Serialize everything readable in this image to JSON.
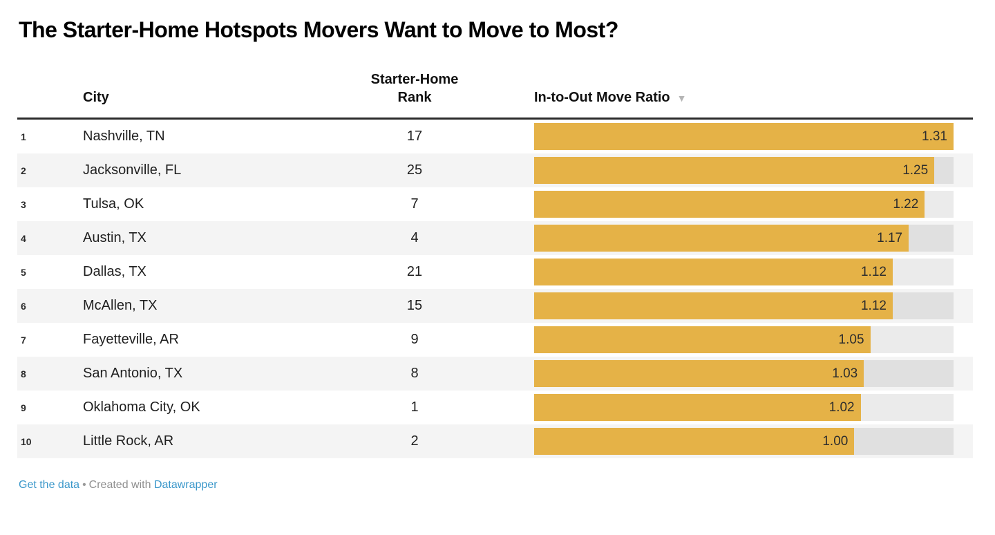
{
  "title": "The Starter-Home Hotspots Movers Want to Move to Most?",
  "table": {
    "columns": {
      "city": "City",
      "starter_rank_line1": "Starter-Home",
      "starter_rank_line2": "Rank",
      "ratio": "In-to-Out Move Ratio",
      "sort_icon": "▼",
      "sorted_by": "In-to-Out Move Ratio",
      "sort_direction": "descending"
    },
    "rows": [
      {
        "index": "1",
        "city": "Nashville, TN",
        "starter_rank": "17",
        "ratio": "1.31",
        "ratio_value": 1.31
      },
      {
        "index": "2",
        "city": "Jacksonville, FL",
        "starter_rank": "25",
        "ratio": "1.25",
        "ratio_value": 1.25
      },
      {
        "index": "3",
        "city": "Tulsa, OK",
        "starter_rank": "7",
        "ratio": "1.22",
        "ratio_value": 1.22
      },
      {
        "index": "4",
        "city": "Austin, TX",
        "starter_rank": "4",
        "ratio": "1.17",
        "ratio_value": 1.17
      },
      {
        "index": "5",
        "city": "Dallas, TX",
        "starter_rank": "21",
        "ratio": "1.12",
        "ratio_value": 1.12
      },
      {
        "index": "6",
        "city": "McAllen, TX",
        "starter_rank": "15",
        "ratio": "1.12",
        "ratio_value": 1.12
      },
      {
        "index": "7",
        "city": "Fayetteville, AR",
        "starter_rank": "9",
        "ratio": "1.05",
        "ratio_value": 1.05
      },
      {
        "index": "8",
        "city": "San Antonio, TX",
        "starter_rank": "8",
        "ratio": "1.03",
        "ratio_value": 1.03
      },
      {
        "index": "9",
        "city": "Oklahoma City, OK",
        "starter_rank": "1",
        "ratio": "1.02",
        "ratio_value": 1.02
      },
      {
        "index": "10",
        "city": "Little Rock, AR",
        "starter_rank": "2",
        "ratio": "1.00",
        "ratio_value": 1.0
      }
    ]
  },
  "footer": {
    "link1": "Get the data",
    "separator": "•",
    "middle": "Created with",
    "link2": "Datawrapper"
  },
  "colors": {
    "bar": "#e5b247",
    "bar_track": "#e3e3e3",
    "row_stripe": "#f4f4f4",
    "header_rule": "#2a2a2a",
    "link_blue": "#3a97ca",
    "sort_icon_gray": "#b5b5b5"
  },
  "chart_data": {
    "type": "bar",
    "title": "The Starter-Home Hotspots Movers Want to Move to Most?",
    "categories": [
      "Nashville, TN",
      "Jacksonville, FL",
      "Tulsa, OK",
      "Austin, TX",
      "Dallas, TX",
      "McAllen, TX",
      "Fayetteville, AR",
      "San Antonio, TX",
      "Oklahoma City, OK",
      "Little Rock, AR"
    ],
    "series": [
      {
        "name": "Starter-Home Rank",
        "values": [
          17,
          25,
          7,
          4,
          21,
          15,
          9,
          8,
          1,
          2
        ]
      },
      {
        "name": "In-to-Out Move Ratio",
        "values": [
          1.31,
          1.25,
          1.22,
          1.17,
          1.12,
          1.12,
          1.05,
          1.03,
          1.02,
          1.0
        ]
      }
    ],
    "bar_series": "In-to-Out Move Ratio",
    "xlim": [
      0,
      1.31
    ],
    "orientation": "horizontal",
    "grid": false,
    "legend_position": "none",
    "sort": "In-to-Out Move Ratio descending"
  }
}
